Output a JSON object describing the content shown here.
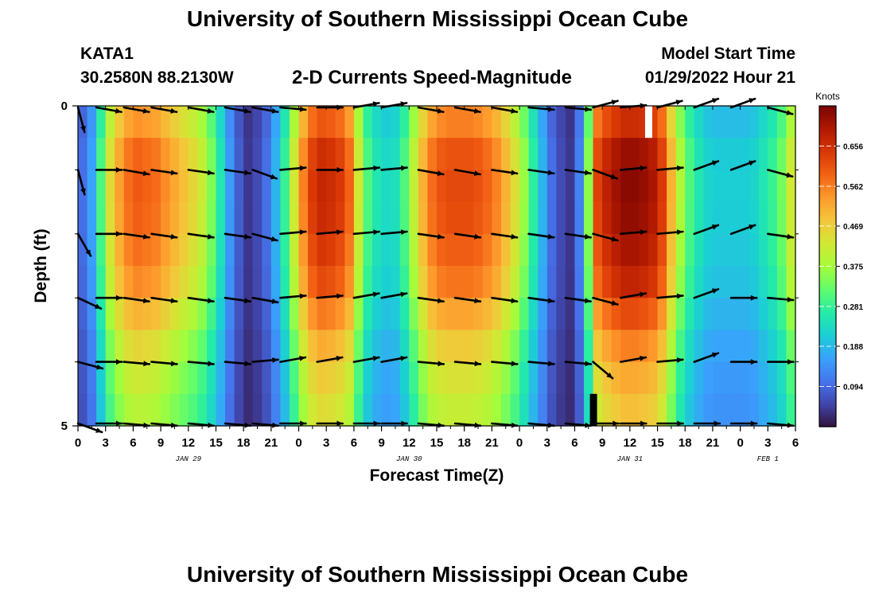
{
  "page": {
    "title": "University of Southern Mississippi Ocean Cube",
    "title_repeat": "University of Southern Mississippi Ocean Cube",
    "station": "KATA1",
    "coordinates": "30.2580N  88.2130W",
    "subtitle": "2-D Currents Speed-Magnitude",
    "model_start_label": "Model Start Time",
    "model_start_value": "01/29/2022 Hour 21"
  },
  "chart_data": {
    "type": "heatmap",
    "title": "2-D Currents Speed-Magnitude",
    "xlabel": "Forecast Time(Z)",
    "ylabel": "Depth (ft)",
    "colorbar_label": "Knots",
    "colorbar_ticks": [
      0.094,
      0.188,
      0.281,
      0.375,
      0.469,
      0.562,
      0.656
    ],
    "colorbar_tick_labels": [
      "0.094",
      "0.188",
      "0.281",
      "0.375",
      "0.469",
      "0.562",
      "0.656"
    ],
    "colorbar_range": [
      0.0,
      0.75
    ],
    "colormap": [
      "#30123b",
      "#4145ab",
      "#4675ed",
      "#39a2fc",
      "#1bcfd4",
      "#24eca6",
      "#61fc6c",
      "#a4fc3b",
      "#d1e834",
      "#f3c63a",
      "#fe9b2d",
      "#f36315",
      "#d93806",
      "#b11901",
      "#7a0403"
    ],
    "ylim": [
      0,
      5
    ],
    "y_ticks": [
      0,
      5
    ],
    "y_reversed": true,
    "x_start": "2022-01-29 00Z",
    "x_end": "2022-02-01 06Z",
    "x_tick_labels": [
      "0",
      "3",
      "6",
      "9",
      "12",
      "15",
      "18",
      "21",
      "0",
      "3",
      "6",
      "9",
      "12",
      "15",
      "18",
      "21",
      "0",
      "3",
      "6",
      "9",
      "12",
      "15",
      "18",
      "21",
      "0",
      "3",
      "6"
    ],
    "date_labels": [
      {
        "text": "JAN 29",
        "at": "2022-01-29 12Z"
      },
      {
        "text": "JAN 30",
        "at": "2022-01-30 12Z"
      },
      {
        "text": "JAN 31",
        "at": "2022-01-31 12Z"
      },
      {
        "text": "FEB 1",
        "at": "2022-02-01 03Z"
      }
    ],
    "time_profile": {
      "description": "speed (knots) per hourly column, from 2022-01-29 00Z to 2022-02-01 06Z",
      "values": [
        0.1,
        0.16,
        0.3,
        0.44,
        0.52,
        0.57,
        0.59,
        0.58,
        0.57,
        0.54,
        0.51,
        0.48,
        0.45,
        0.41,
        0.34,
        0.25,
        0.15,
        0.08,
        0.04,
        0.06,
        0.1,
        0.18,
        0.28,
        0.42,
        0.55,
        0.63,
        0.66,
        0.65,
        0.63,
        0.58,
        0.42,
        0.3,
        0.25,
        0.23,
        0.24,
        0.3,
        0.4,
        0.5,
        0.57,
        0.6,
        0.61,
        0.61,
        0.61,
        0.6,
        0.58,
        0.55,
        0.5,
        0.44,
        0.36,
        0.27,
        0.18,
        0.1,
        0.06,
        0.04,
        0.12,
        0.35,
        0.62,
        0.67,
        0.7,
        0.72,
        0.72,
        0.71,
        0.69,
        0.63,
        0.5,
        0.38,
        0.3,
        0.25,
        0.22,
        0.21,
        0.21,
        0.21,
        0.21,
        0.22,
        0.25,
        0.28,
        0.33,
        0.42
      ]
    },
    "depth_factors": [
      0.92,
      1.0,
      1.02,
      1.01,
      0.98,
      0.94,
      0.86,
      0.78,
      0.72,
      0.68
    ],
    "missing_cells": [
      {
        "time": "2022-01-31 14Z",
        "depth_range": [
          0,
          0.5
        ],
        "fill": "white"
      },
      {
        "time": "2022-01-31 08Z",
        "depth_range": [
          4.5,
          5
        ],
        "fill": "black"
      }
    ],
    "vectors": {
      "depths": [
        0,
        1,
        2,
        3,
        4,
        5
      ],
      "times_hours": [
        0,
        2,
        5,
        8,
        12,
        16,
        19,
        22,
        26,
        30,
        33,
        37,
        41,
        45,
        49,
        53,
        56,
        59,
        63,
        67,
        71,
        75
      ],
      "angles_deg_by_depth": [
        [
          75,
          10,
          10,
          10,
          10,
          10,
          10,
          5,
          0,
          -10,
          -10,
          10,
          10,
          10,
          5,
          5,
          -15,
          -5,
          -15,
          -20,
          -20,
          15
        ],
        [
          75,
          0,
          10,
          8,
          8,
          8,
          20,
          -5,
          0,
          -5,
          -5,
          10,
          10,
          8,
          8,
          8,
          20,
          -5,
          -5,
          -20,
          -20,
          15
        ],
        [
          60,
          0,
          8,
          8,
          8,
          8,
          15,
          -5,
          -5,
          -5,
          -5,
          8,
          8,
          8,
          8,
          8,
          15,
          -5,
          -5,
          -20,
          -20,
          8
        ],
        [
          25,
          0,
          8,
          8,
          8,
          8,
          10,
          -5,
          -5,
          -10,
          -10,
          8,
          8,
          8,
          8,
          8,
          15,
          -10,
          -5,
          -20,
          0,
          5
        ],
        [
          15,
          0,
          5,
          5,
          5,
          5,
          -5,
          -10,
          -10,
          -10,
          -10,
          5,
          5,
          5,
          5,
          5,
          40,
          -10,
          -5,
          -20,
          0,
          0
        ],
        [
          20,
          0,
          5,
          5,
          5,
          5,
          5,
          0,
          0,
          0,
          0,
          5,
          5,
          5,
          5,
          5,
          0,
          0,
          0,
          0,
          0,
          5
        ]
      ]
    }
  }
}
